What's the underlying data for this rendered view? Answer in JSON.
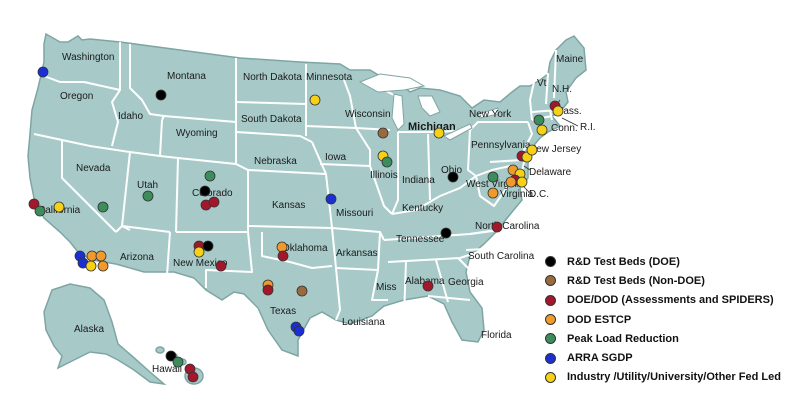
{
  "colors": {
    "land": "#a7cac9",
    "state_border": "#ffffff",
    "outline": "#7ea5a4",
    "background": "#ffffff"
  },
  "states": [
    "Washington",
    "Oregon",
    "California",
    "Nevada",
    "Idaho",
    "Montana",
    "Wyoming",
    "Utah",
    "Arizona",
    "Colorado",
    "New Mexico",
    "North Dakota",
    "South Dakota",
    "Nebraska",
    "Kansas",
    "Oklahoma",
    "Texas",
    "Minnesota",
    "Iowa",
    "Missouri",
    "Arkansas",
    "Louisiana",
    "Wisconsin",
    "Illinois",
    "Indiana",
    "Ohio",
    "Michigan",
    "Kentucky",
    "Tennessee",
    "Miss",
    "Alabama",
    "Georgia",
    "Florida",
    "South Carolina",
    "North Carolina",
    "Virginia",
    "West Virginia",
    "Pennsylvania",
    "New York",
    "New Jersey",
    "Delaware",
    "D.C.",
    "Conn.",
    "R.I.",
    "Mass.",
    "Vt",
    "N.H.",
    "Maine",
    "Alaska",
    "Hawaii"
  ],
  "legend": [
    {
      "key": "rd_doe",
      "label": "R&D Test Beds (DOE)",
      "color": "#000000"
    },
    {
      "key": "rd_nondoe",
      "label": "R&D Test Beds (Non-DOE)",
      "color": "#9a6a3f"
    },
    {
      "key": "doe_dod",
      "label": "DOE/DOD  (Assessments and SPIDERS)",
      "color": "#a3172b"
    },
    {
      "key": "dod_estcp",
      "label": "DOD ESTCP",
      "color": "#ef9a2a"
    },
    {
      "key": "peak",
      "label": "Peak Load Reduction",
      "color": "#3c8c5c"
    },
    {
      "key": "arra",
      "label": "ARRA SGDP",
      "color": "#1a2fd6"
    },
    {
      "key": "industry",
      "label": "Industry /Utility/University/Other Fed Led",
      "color": "#f7d117"
    }
  ]
}
